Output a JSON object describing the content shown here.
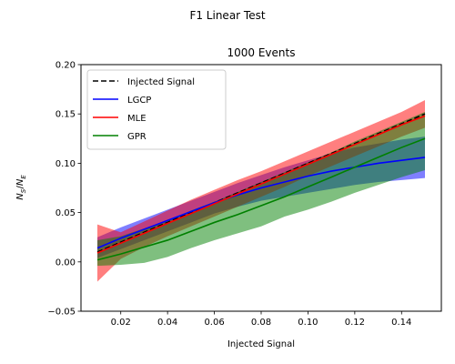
{
  "chart_data": {
    "type": "line",
    "suptitle": "F1 Linear Test",
    "title": "1000 Events",
    "xlabel": "Injected Signal",
    "ylabel": "N_S/N_E",
    "xlim": [
      0.003,
      0.157
    ],
    "ylim": [
      -0.05,
      0.2
    ],
    "x_ticks": [
      0.02,
      0.04,
      0.06,
      0.08,
      0.1,
      0.12,
      0.14
    ],
    "x_tick_labels": [
      "0.02",
      "0.04",
      "0.06",
      "0.08",
      "0.10",
      "0.12",
      "0.14"
    ],
    "y_ticks": [
      -0.05,
      0.0,
      0.05,
      0.1,
      0.15,
      0.2
    ],
    "y_tick_labels": [
      "−0.05",
      "0.00",
      "0.05",
      "0.10",
      "0.15",
      "0.20"
    ],
    "grid": false,
    "legend_position": "upper-left",
    "x": [
      0.01,
      0.02,
      0.03,
      0.04,
      0.05,
      0.06,
      0.07,
      0.08,
      0.09,
      0.1,
      0.11,
      0.12,
      0.13,
      0.14,
      0.15
    ],
    "series": [
      {
        "name": "Injected Signal",
        "color": "#000000",
        "dashed": true,
        "values": [
          0.01,
          0.02,
          0.03,
          0.04,
          0.05,
          0.06,
          0.07,
          0.08,
          0.09,
          0.1,
          0.11,
          0.12,
          0.13,
          0.14,
          0.15
        ]
      },
      {
        "name": "LGCP",
        "color": "#0000ff",
        "values": [
          0.014,
          0.024,
          0.033,
          0.042,
          0.051,
          0.06,
          0.068,
          0.075,
          0.081,
          0.087,
          0.092,
          0.096,
          0.1,
          0.103,
          0.106
        ],
        "band_upper": [
          0.025,
          0.035,
          0.044,
          0.053,
          0.062,
          0.071,
          0.08,
          0.088,
          0.096,
          0.103,
          0.11,
          0.116,
          0.12,
          0.124,
          0.127
        ],
        "band_lower": [
          0.004,
          0.013,
          0.022,
          0.031,
          0.04,
          0.049,
          0.056,
          0.062,
          0.066,
          0.07,
          0.074,
          0.078,
          0.081,
          0.083,
          0.085
        ]
      },
      {
        "name": "MLE",
        "color": "#ff0000",
        "values": [
          0.009,
          0.019,
          0.029,
          0.039,
          0.049,
          0.059,
          0.069,
          0.079,
          0.089,
          0.099,
          0.109,
          0.119,
          0.129,
          0.139,
          0.148
        ],
        "band_upper": [
          0.038,
          0.03,
          0.041,
          0.052,
          0.063,
          0.073,
          0.083,
          0.092,
          0.102,
          0.112,
          0.122,
          0.132,
          0.142,
          0.152,
          0.164
        ],
        "band_lower": [
          -0.02,
          0.003,
          0.015,
          0.026,
          0.036,
          0.046,
          0.056,
          0.066,
          0.076,
          0.087,
          0.097,
          0.107,
          0.117,
          0.127,
          0.136
        ]
      },
      {
        "name": "GPR",
        "color": "#008000",
        "values": [
          0.002,
          0.008,
          0.015,
          0.022,
          0.031,
          0.04,
          0.048,
          0.057,
          0.066,
          0.076,
          0.086,
          0.096,
          0.106,
          0.116,
          0.125
        ],
        "band_upper": [
          0.022,
          0.026,
          0.034,
          0.042,
          0.052,
          0.061,
          0.071,
          0.081,
          0.091,
          0.101,
          0.111,
          0.122,
          0.132,
          0.142,
          0.152
        ],
        "band_lower": [
          -0.004,
          -0.003,
          -0.001,
          0.005,
          0.014,
          0.022,
          0.029,
          0.036,
          0.046,
          0.053,
          0.061,
          0.07,
          0.078,
          0.086,
          0.093
        ]
      }
    ]
  }
}
